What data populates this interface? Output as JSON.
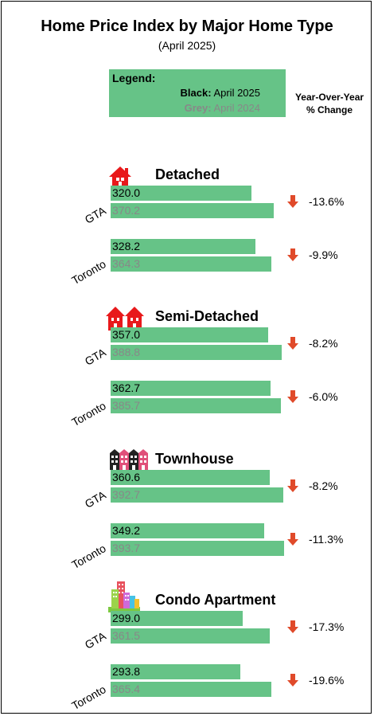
{
  "title": "Home Price Index by Major Home Type",
  "subtitle": "(April 2025)",
  "legend": {
    "title": "Legend:",
    "black_key": "Black:",
    "black_value": " April 2025",
    "grey_key": "Grey:",
    "grey_value": " April 2024"
  },
  "yoy_header": [
    "Year-Over-Year",
    "% Change"
  ],
  "colors": {
    "bar": "#66c387",
    "current_text": "#000000",
    "prior_text": "#888888",
    "arrow": "#e04a2a"
  },
  "chart_data": {
    "type": "bar",
    "orientation": "horizontal",
    "series": [
      {
        "name": "April 2025",
        "color": "black"
      },
      {
        "name": "April 2024",
        "color": "grey"
      }
    ],
    "groups": [
      {
        "home_type": "Detached",
        "icon": "house-icon",
        "rows": [
          {
            "region": "GTA",
            "current": "320.0",
            "prior": "370.2",
            "change": "-13.6%"
          },
          {
            "region": "Toronto",
            "current": "328.2",
            "prior": "364.3",
            "change": "-9.9%"
          }
        ]
      },
      {
        "home_type": "Semi-Detached",
        "icon": "semi-detached-icon",
        "rows": [
          {
            "region": "GTA",
            "current": "357.0",
            "prior": "388.8",
            "change": "-8.2%"
          },
          {
            "region": "Toronto",
            "current": "362.7",
            "prior": "385.7",
            "change": "-6.0%"
          }
        ]
      },
      {
        "home_type": "Townhouse",
        "icon": "townhouse-icon",
        "rows": [
          {
            "region": "GTA",
            "current": "360.6",
            "prior": "392.7",
            "change": "-8.2%"
          },
          {
            "region": "Toronto",
            "current": "349.2",
            "prior": "393.7",
            "change": "-11.3%"
          }
        ]
      },
      {
        "home_type": "Condo Apartment",
        "icon": "condo-icon",
        "rows": [
          {
            "region": "GTA",
            "current": "299.0",
            "prior": "361.5",
            "change": "-17.3%"
          },
          {
            "region": "Toronto",
            "current": "293.8",
            "prior": "365.4",
            "change": "-19.6%"
          }
        ]
      }
    ]
  }
}
